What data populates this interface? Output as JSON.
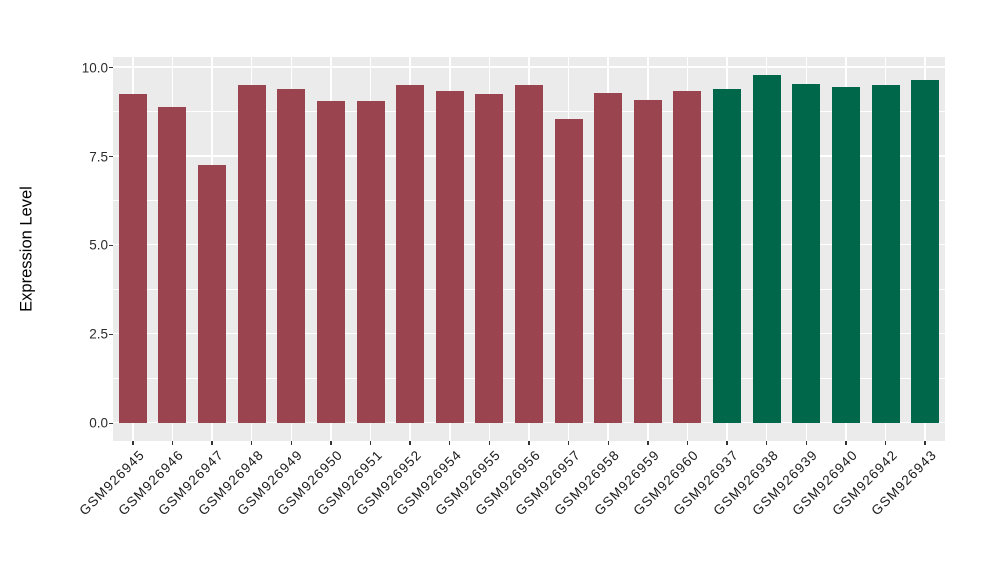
{
  "chart_data": {
    "type": "bar",
    "title": "",
    "xlabel": "",
    "ylabel": "Expression Level",
    "categories": [
      "GSM926945",
      "GSM926946",
      "GSM926947",
      "GSM926948",
      "GSM926949",
      "GSM926950",
      "GSM926951",
      "GSM926952",
      "GSM926954",
      "GSM926955",
      "GSM926956",
      "GSM926957",
      "GSM926958",
      "GSM926959",
      "GSM926960",
      "GSM926937",
      "GSM926938",
      "GSM926939",
      "GSM926940",
      "GSM926942",
      "GSM926943"
    ],
    "values": [
      9.25,
      8.9,
      7.25,
      9.5,
      9.4,
      9.05,
      9.05,
      9.5,
      9.35,
      9.25,
      9.5,
      8.55,
      9.3,
      9.1,
      9.35,
      9.4,
      9.8,
      9.55,
      9.45,
      9.5,
      9.65
    ],
    "bar_colors": [
      "#9A4450",
      "#9A4450",
      "#9A4450",
      "#9A4450",
      "#9A4450",
      "#9A4450",
      "#9A4450",
      "#9A4450",
      "#9A4450",
      "#9A4450",
      "#9A4450",
      "#9A4450",
      "#9A4450",
      "#9A4450",
      "#9A4450",
      "#00674B",
      "#00674B",
      "#00674B",
      "#00674B",
      "#00674B",
      "#00674B"
    ],
    "groups": [
      {
        "name": "maroon-group",
        "color": "#9A4450",
        "first": "GSM926945",
        "last": "GSM926960",
        "count": 15
      },
      {
        "name": "green-group",
        "color": "#00674B",
        "first": "GSM926937",
        "last": "GSM926943",
        "count": 6
      }
    ],
    "ylim": [
      0,
      10
    ],
    "yticks": [
      0,
      2.5,
      5,
      7.5,
      10
    ],
    "ytick_labels": [
      "0.0",
      "2.5",
      "5.0",
      "7.5",
      "10.0"
    ],
    "yminor": [
      1.25,
      3.75,
      6.25,
      8.75
    ],
    "grid": "white major+minor horizontal lines and white vertical lines at each category on gray panel",
    "legend_position": "none",
    "colors": {
      "panel_background": "#EBEBEB",
      "gridline": "#FFFFFF",
      "axis_text": "#2B2B2B",
      "axis_title": "#000000",
      "maroon_bars": "#9A4450",
      "green_bars": "#00674B"
    }
  }
}
